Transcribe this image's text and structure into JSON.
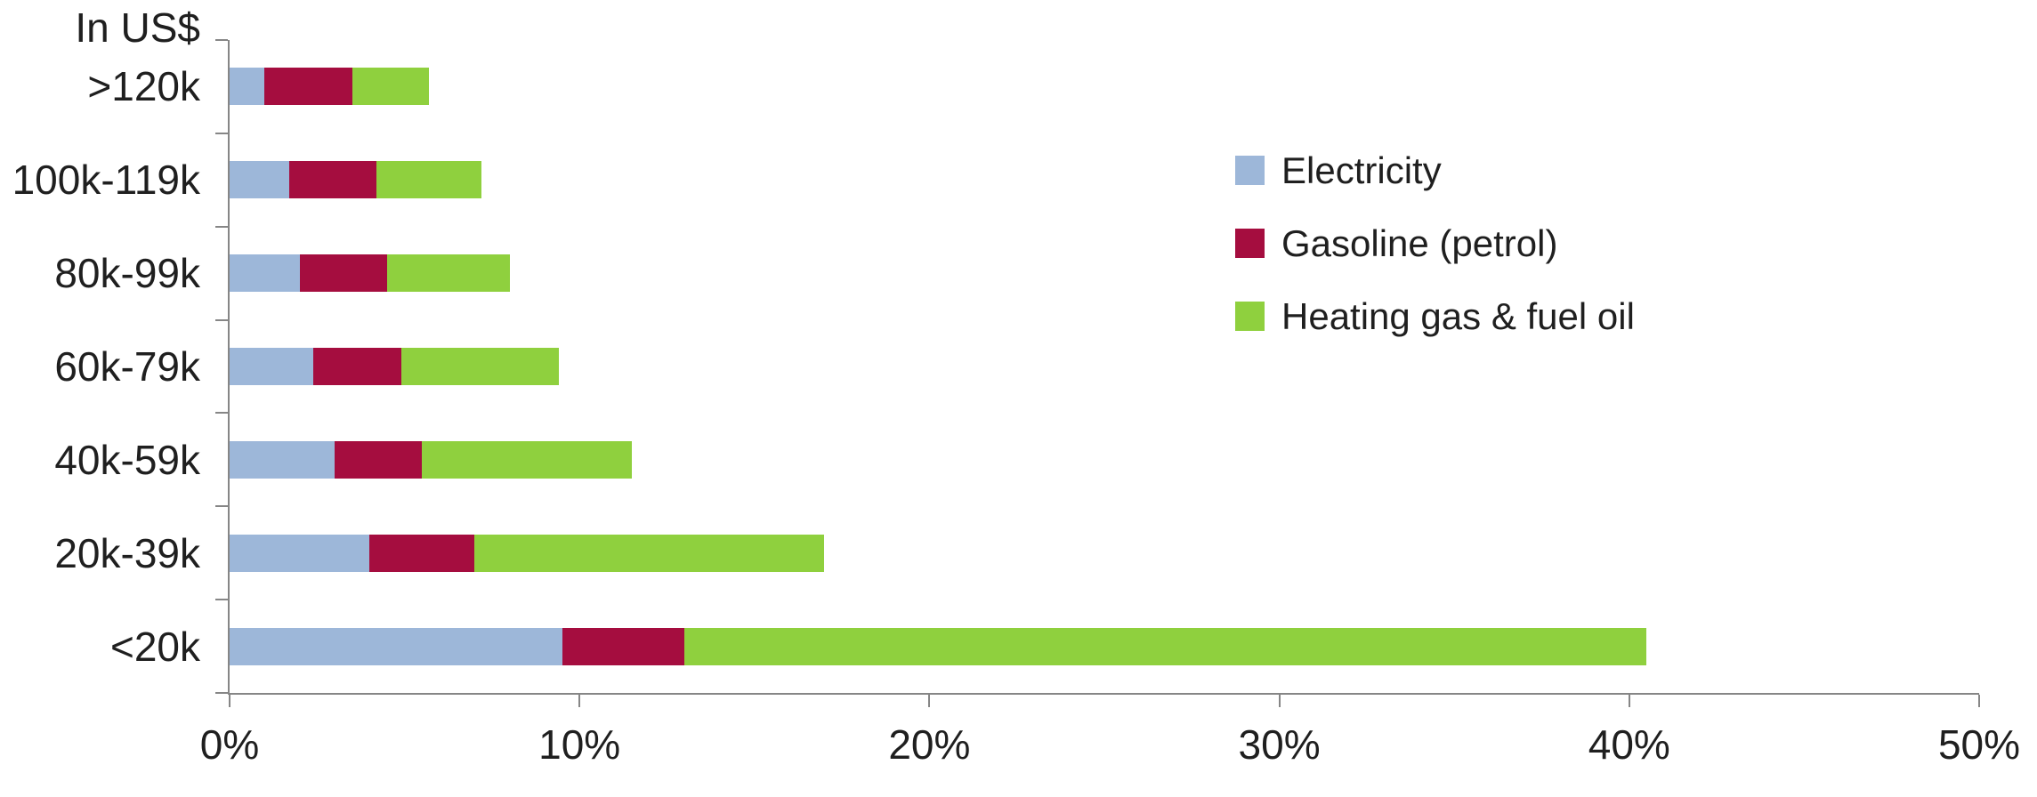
{
  "chart_data": {
    "type": "bar",
    "orientation": "horizontal",
    "stacked": true,
    "axis_title": "In US$",
    "categories": [
      ">120k",
      "100k-119k",
      "80k-99k",
      "60k-79k",
      "40k-59k",
      "20k-39k",
      "<20k"
    ],
    "series": [
      {
        "name": "Electricity",
        "color": "#9DB7D9",
        "values": [
          1.0,
          1.7,
          2.0,
          2.4,
          3.0,
          4.0,
          9.5
        ]
      },
      {
        "name": "Gasoline (petrol)",
        "color": "#A50D3F",
        "values": [
          2.5,
          2.5,
          2.5,
          2.5,
          2.5,
          3.0,
          3.5
        ]
      },
      {
        "name": "Heating gas & fuel oil",
        "color": "#8FD03E",
        "values": [
          2.2,
          3.0,
          3.5,
          4.5,
          6.0,
          10.0,
          27.5
        ]
      }
    ],
    "totals": [
      5.7,
      7.2,
      8.0,
      9.4,
      11.5,
      17.0,
      40.5
    ],
    "x_ticks": [
      "0%",
      "10%",
      "20%",
      "30%",
      "40%",
      "50%"
    ],
    "xlim": [
      0,
      50
    ],
    "xlabel": "",
    "ylabel": "",
    "grid": false,
    "legend_position": "upper-right",
    "axis_color": "#868686"
  }
}
